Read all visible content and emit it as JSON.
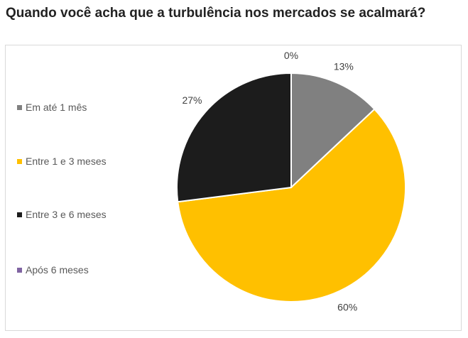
{
  "chart_data": {
    "type": "pie",
    "title": "Quando você acha que a turbulência nos mercados se acalmará?",
    "legend_position": "left",
    "slices": [
      {
        "name": "Em até 1 mês",
        "value": 13,
        "label": "13%",
        "color": "#808080"
      },
      {
        "name": "Entre 1 e 3 meses",
        "value": 60,
        "label": "60%",
        "color": "#FFC000"
      },
      {
        "name": "Entre 3 e 6 meses",
        "value": 27,
        "label": "27%",
        "color": "#1C1C1C"
      },
      {
        "name": "Após 6 meses",
        "value": 0,
        "label": "0%",
        "color": "#8064A2"
      }
    ]
  }
}
